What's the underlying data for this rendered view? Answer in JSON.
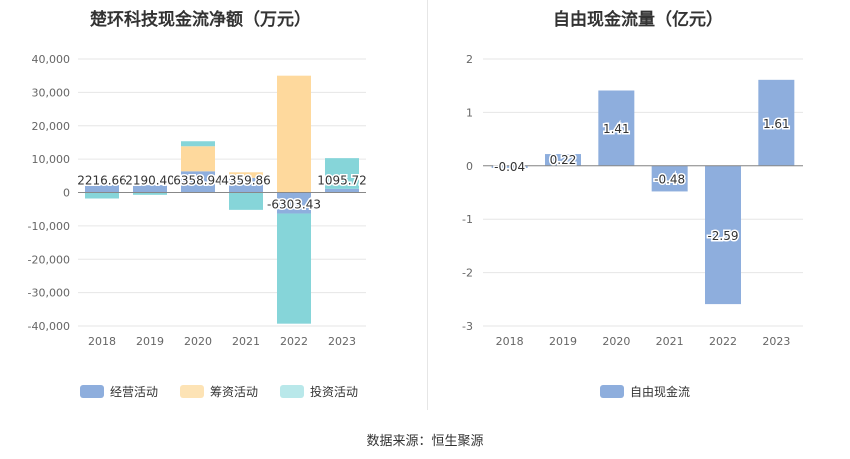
{
  "chart_data": [
    {
      "type": "bar",
      "stacked": true,
      "title": "楚环科技现金流净额（万元）",
      "categories": [
        "2018",
        "2019",
        "2020",
        "2021",
        "2022",
        "2023"
      ],
      "ylim": [
        -40000,
        40000
      ],
      "yticks": [
        40000,
        30000,
        20000,
        10000,
        0,
        -10000,
        -20000,
        -30000,
        -40000
      ],
      "ytick_labels": [
        "40,000",
        "30,000",
        "20,000",
        "10,000",
        "0",
        "-10,000",
        "-20,000",
        "-30,000",
        "-40,000"
      ],
      "grid": true,
      "legend_position": "bottom-left",
      "series": [
        {
          "name": "经营活动",
          "color": "#8eaedd",
          "values": [
            2216.66,
            2190.4,
            6358.94,
            4359.86,
            -6303.43,
            1095.72
          ]
        },
        {
          "name": "筹资活动",
          "color": "#fed99d",
          "values": [
            0,
            0,
            7500,
            1700,
            35000,
            0
          ]
        },
        {
          "name": "投资活动",
          "color": "#86d5d9",
          "values": [
            -1800,
            -700,
            1500,
            -5200,
            -33000,
            9200
          ]
        }
      ],
      "data_labels": [
        "2216.66",
        "2190.40",
        "6358.94",
        "4359.86",
        "-6303.43",
        "1095.72"
      ]
    },
    {
      "type": "bar",
      "title": "自由现金流量（亿元）",
      "categories": [
        "2018",
        "2019",
        "2020",
        "2021",
        "2022",
        "2023"
      ],
      "ylim": [
        -3,
        2
      ],
      "yticks": [
        2,
        1,
        0,
        -1,
        -2,
        -3
      ],
      "ytick_labels": [
        "2",
        "1",
        "0",
        "-1",
        "-2",
        "-3"
      ],
      "grid": true,
      "legend_position": "bottom-center",
      "series": [
        {
          "name": "自由现金流",
          "color": "#8eaedd",
          "values": [
            -0.04,
            0.22,
            1.41,
            -0.48,
            -2.59,
            1.61
          ]
        }
      ],
      "data_labels": [
        "-0.04",
        "0.22",
        "1.41",
        "-0.48",
        "-2.59",
        "1.61"
      ]
    }
  ],
  "footer": {
    "source": "数据来源：恒生聚源"
  }
}
